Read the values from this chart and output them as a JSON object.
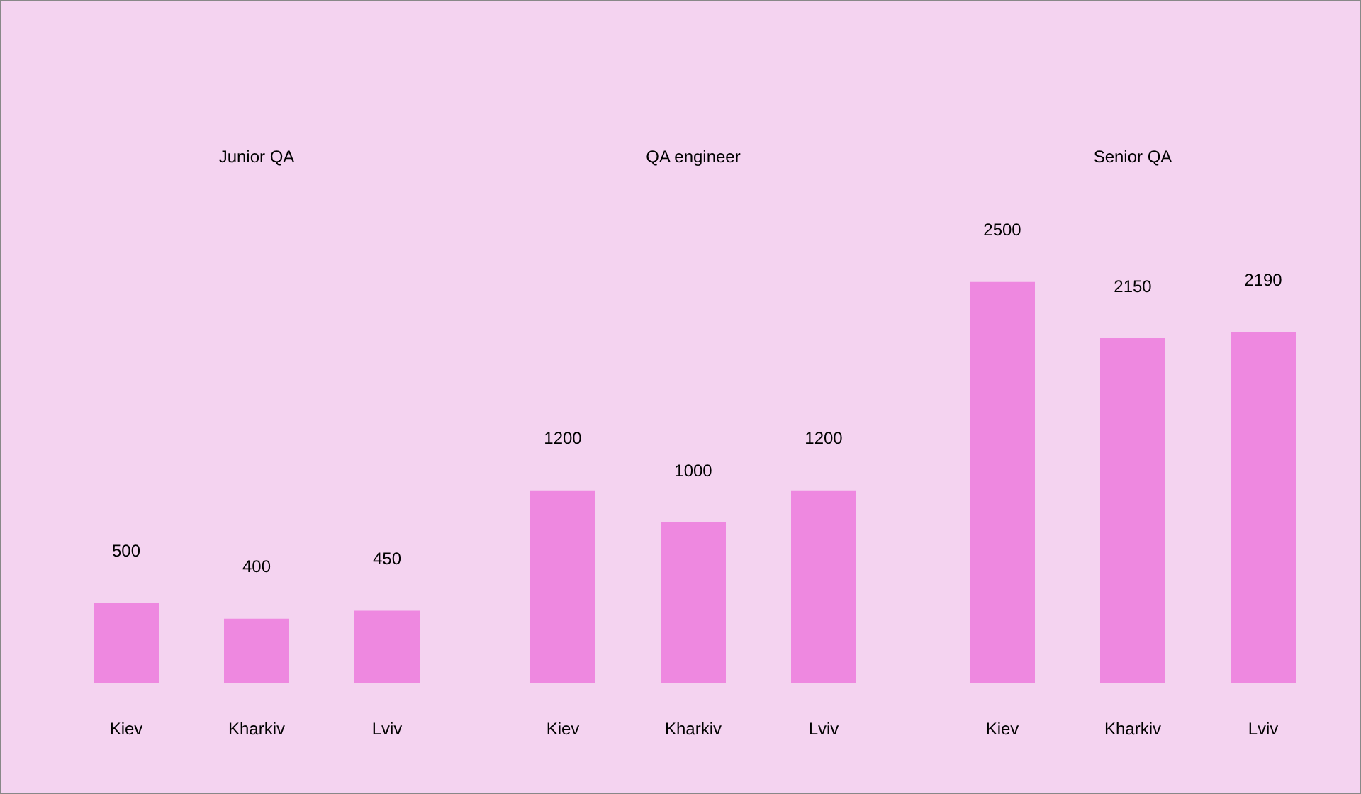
{
  "chart_data": [
    {
      "type": "bar",
      "title": "Junior QA",
      "categories": [
        "Kiev",
        "Kharkiv",
        "Lviv"
      ],
      "values": [
        500,
        400,
        450
      ],
      "color": "#ee88e0",
      "tick_labels": "x",
      "data_labels": true
    },
    {
      "type": "bar",
      "title": "QA engineer",
      "categories": [
        "Kiev",
        "Kharkiv",
        "Lviv"
      ],
      "values": [
        1200,
        1000,
        1200
      ],
      "color": "#ee88e0",
      "tick_labels": "x",
      "data_labels": true
    },
    {
      "type": "bar",
      "title": "Senior QA",
      "categories": [
        "Kiev",
        "Kharkiv",
        "Lviv"
      ],
      "values": [
        2500,
        2150,
        2190
      ],
      "color": "#ee88e0",
      "tick_labels": "x",
      "data_labels": true
    }
  ]
}
